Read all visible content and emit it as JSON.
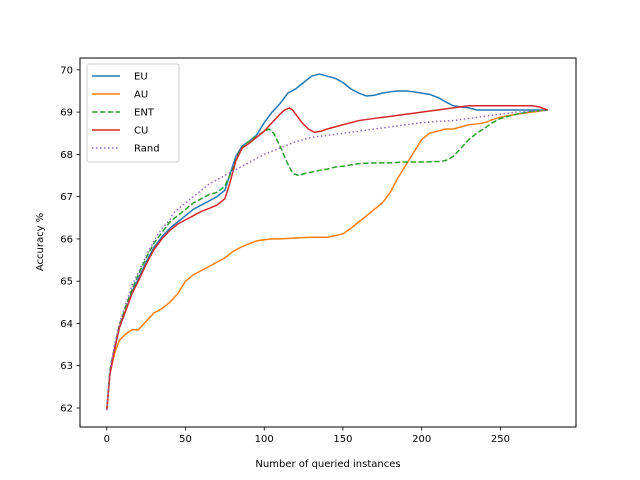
{
  "chart_data": {
    "type": "line",
    "title": "",
    "xlabel": "Number of queried instances",
    "ylabel": "Accuracy %",
    "xlim": [
      -17,
      298
    ],
    "ylim": [
      61.55,
      70.28
    ],
    "xticks": [
      0,
      50,
      100,
      150,
      200,
      250
    ],
    "yticks": [
      62,
      63,
      64,
      65,
      66,
      67,
      68,
      69,
      70
    ],
    "grid": false,
    "legend_position": "top-left",
    "series": [
      {
        "name": "EU",
        "color": "#1f77b4",
        "dash": "solid",
        "x": [
          0,
          2,
          5,
          8,
          12,
          16,
          20,
          25,
          30,
          35,
          40,
          45,
          50,
          55,
          60,
          65,
          70,
          75,
          78,
          82,
          86,
          90,
          95,
          100,
          105,
          110,
          115,
          120,
          125,
          130,
          135,
          140,
          145,
          150,
          155,
          160,
          165,
          170,
          175,
          180,
          185,
          190,
          195,
          200,
          205,
          210,
          215,
          220,
          225,
          230,
          235,
          240,
          245,
          250,
          260,
          270,
          275,
          280
        ],
        "y": [
          61.95,
          62.8,
          63.4,
          63.9,
          64.3,
          64.75,
          65.05,
          65.45,
          65.8,
          66.05,
          66.25,
          66.4,
          66.55,
          66.7,
          66.8,
          66.9,
          67.0,
          67.15,
          67.5,
          67.95,
          68.2,
          68.3,
          68.45,
          68.75,
          69.0,
          69.2,
          69.45,
          69.55,
          69.7,
          69.85,
          69.9,
          69.85,
          69.8,
          69.7,
          69.55,
          69.45,
          69.38,
          69.4,
          69.45,
          69.48,
          69.5,
          69.5,
          69.48,
          69.45,
          69.42,
          69.35,
          69.25,
          69.15,
          69.12,
          69.1,
          69.05,
          69.05,
          69.05,
          69.05,
          69.05,
          69.05,
          69.05,
          69.05
        ]
      },
      {
        "name": "AU",
        "color": "#ff7f0e",
        "dash": "solid",
        "x": [
          0,
          2,
          5,
          8,
          12,
          16,
          20,
          25,
          30,
          35,
          40,
          45,
          50,
          55,
          60,
          65,
          70,
          75,
          80,
          85,
          90,
          95,
          100,
          105,
          110,
          120,
          130,
          140,
          150,
          155,
          160,
          165,
          170,
          175,
          180,
          185,
          190,
          195,
          200,
          205,
          210,
          215,
          220,
          225,
          230,
          235,
          240,
          245,
          250,
          260,
          270,
          280
        ],
        "y": [
          61.95,
          62.8,
          63.3,
          63.6,
          63.75,
          63.85,
          63.85,
          64.05,
          64.25,
          64.35,
          64.5,
          64.7,
          65.0,
          65.15,
          65.25,
          65.35,
          65.45,
          65.55,
          65.7,
          65.8,
          65.88,
          65.95,
          65.98,
          66.0,
          66.0,
          66.02,
          66.04,
          66.04,
          66.12,
          66.25,
          66.4,
          66.55,
          66.7,
          66.85,
          67.1,
          67.45,
          67.75,
          68.05,
          68.35,
          68.5,
          68.55,
          68.6,
          68.6,
          68.65,
          68.7,
          68.72,
          68.75,
          68.82,
          68.88,
          68.95,
          69.0,
          69.05
        ]
      },
      {
        "name": "ENT",
        "color": "#2ca02c",
        "dash": "dashed",
        "x": [
          0,
          2,
          5,
          8,
          12,
          16,
          20,
          25,
          30,
          35,
          40,
          45,
          50,
          55,
          60,
          65,
          70,
          75,
          80,
          84,
          88,
          92,
          96,
          100,
          103,
          106,
          110,
          114,
          118,
          122,
          126,
          130,
          135,
          140,
          145,
          150,
          155,
          160,
          170,
          180,
          190,
          200,
          210,
          215,
          220,
          225,
          230,
          235,
          240,
          245,
          250,
          260,
          270,
          280
        ],
        "y": [
          61.95,
          62.9,
          63.45,
          63.95,
          64.4,
          64.8,
          65.15,
          65.55,
          65.9,
          66.15,
          66.4,
          66.55,
          66.7,
          66.85,
          66.95,
          67.05,
          67.1,
          67.25,
          67.65,
          68.05,
          68.25,
          68.35,
          68.45,
          68.55,
          68.6,
          68.5,
          68.2,
          67.85,
          67.55,
          67.5,
          67.55,
          67.58,
          67.62,
          67.65,
          67.7,
          67.72,
          67.75,
          67.78,
          67.8,
          67.8,
          67.82,
          67.82,
          67.83,
          67.85,
          67.95,
          68.15,
          68.35,
          68.5,
          68.62,
          68.75,
          68.85,
          68.95,
          69.02,
          69.05
        ]
      },
      {
        "name": "CU",
        "color": "#d62728",
        "dash": "solid",
        "x": [
          0,
          2,
          5,
          8,
          12,
          16,
          20,
          25,
          30,
          35,
          40,
          45,
          50,
          55,
          60,
          65,
          70,
          75,
          78,
          82,
          86,
          90,
          95,
          100,
          105,
          110,
          113,
          116,
          118,
          120,
          124,
          128,
          132,
          136,
          140,
          145,
          150,
          155,
          160,
          170,
          180,
          190,
          200,
          210,
          220,
          230,
          240,
          250,
          260,
          270,
          275,
          280
        ],
        "y": [
          61.95,
          62.8,
          63.4,
          63.9,
          64.3,
          64.7,
          65.0,
          65.4,
          65.75,
          66.0,
          66.2,
          66.35,
          66.45,
          66.55,
          66.65,
          66.72,
          66.8,
          66.95,
          67.3,
          67.85,
          68.15,
          68.25,
          68.4,
          68.55,
          68.75,
          68.95,
          69.05,
          69.1,
          69.05,
          68.95,
          68.75,
          68.6,
          68.52,
          68.55,
          68.6,
          68.65,
          68.7,
          68.75,
          68.8,
          68.85,
          68.9,
          68.95,
          69.0,
          69.05,
          69.1,
          69.15,
          69.15,
          69.15,
          69.15,
          69.15,
          69.12,
          69.05
        ]
      },
      {
        "name": "Rand",
        "color": "#9467bd",
        "dash": "dotted",
        "x": [
          0,
          2,
          5,
          8,
          12,
          16,
          20,
          25,
          30,
          35,
          40,
          42,
          45,
          50,
          55,
          60,
          65,
          70,
          75,
          80,
          85,
          90,
          95,
          100,
          110,
          120,
          130,
          140,
          150,
          160,
          170,
          180,
          190,
          200,
          210,
          220,
          230,
          240,
          250,
          260,
          270,
          280
        ],
        "y": [
          61.95,
          62.9,
          63.5,
          64.0,
          64.45,
          64.9,
          65.2,
          65.6,
          65.95,
          66.25,
          66.45,
          66.6,
          66.7,
          66.85,
          67.0,
          67.15,
          67.3,
          67.4,
          67.5,
          67.6,
          67.7,
          67.8,
          67.9,
          68.0,
          68.15,
          68.3,
          68.4,
          68.45,
          68.5,
          68.55,
          68.6,
          68.65,
          68.7,
          68.75,
          68.78,
          68.8,
          68.85,
          68.9,
          68.95,
          69.0,
          69.02,
          69.05
        ]
      }
    ]
  }
}
